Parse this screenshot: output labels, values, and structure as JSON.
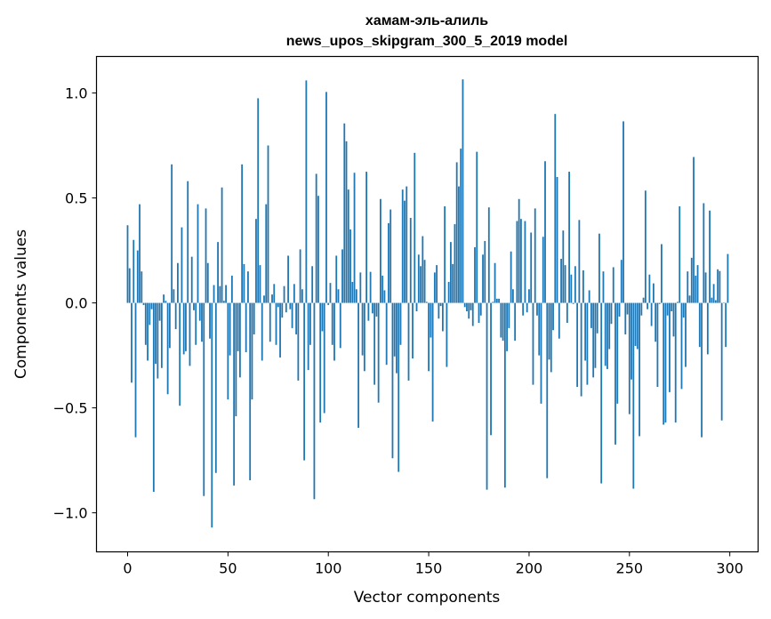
{
  "chart_data": {
    "type": "bar",
    "title": "хамам-эль-алиль",
    "subtitle": "news_upos_skipgram_300_5_2019 model",
    "xlabel": "Vector components",
    "ylabel": "Components values",
    "xlim": [
      -15.5,
      314.1
    ],
    "ylim": [
      -1.186,
      1.174
    ],
    "xticks": [
      0,
      50,
      100,
      150,
      200,
      250,
      300
    ],
    "xtick_labels": [
      "0",
      "50",
      "100",
      "150",
      "200",
      "250",
      "300"
    ],
    "yticks": [
      -1.0,
      -0.5,
      0.0,
      0.5,
      1.0
    ],
    "ytick_labels": [
      "−1.0",
      "−0.5",
      "0.0",
      "0.5",
      "1.0"
    ],
    "grid": false,
    "bar_color": "#1f77b4",
    "values": [
      0.37,
      0.165,
      -0.38,
      0.3,
      -0.64,
      0.25,
      0.47,
      0.15,
      -0.01,
      -0.2,
      -0.275,
      -0.105,
      -0.03,
      -0.9,
      -0.29,
      -0.36,
      -0.085,
      -0.31,
      0.04,
      0.01,
      -0.435,
      -0.215,
      0.66,
      0.065,
      -0.125,
      0.19,
      -0.49,
      0.36,
      -0.245,
      -0.23,
      0.58,
      -0.3,
      0.22,
      -0.035,
      -0.2,
      0.47,
      -0.085,
      -0.185,
      -0.92,
      0.45,
      0.19,
      -0.17,
      -1.07,
      0.085,
      -0.81,
      0.29,
      0.08,
      0.55,
      0.01,
      0.085,
      -0.46,
      -0.25,
      0.13,
      -0.87,
      -0.54,
      -0.23,
      -0.355,
      0.66,
      0.185,
      -0.235,
      0.15,
      -0.845,
      -0.46,
      -0.15,
      0.4,
      0.975,
      0.18,
      -0.275,
      0.035,
      0.47,
      0.75,
      -0.185,
      0.04,
      0.09,
      -0.2,
      -0.02,
      -0.26,
      -0.07,
      0.08,
      -0.045,
      0.225,
      -0.03,
      -0.12,
      0.09,
      -0.15,
      -0.37,
      0.255,
      0.065,
      -0.75,
      1.06,
      -0.32,
      -0.2,
      0.175,
      -0.935,
      0.615,
      0.51,
      -0.57,
      -0.135,
      -0.525,
      1.005,
      -0.01,
      0.095,
      -0.2,
      -0.275,
      0.225,
      0.065,
      -0.215,
      0.255,
      0.855,
      0.77,
      0.54,
      0.35,
      0.1,
      0.62,
      0.065,
      -0.595,
      0.145,
      -0.25,
      -0.325,
      0.625,
      -0.085,
      0.148,
      -0.05,
      -0.39,
      -0.065,
      -0.475,
      0.495,
      0.13,
      0.06,
      -0.295,
      0.38,
      0.445,
      -0.74,
      -0.255,
      -0.335,
      -0.805,
      -0.2,
      0.54,
      0.487,
      0.555,
      -0.37,
      0.405,
      -0.265,
      0.715,
      -0.04,
      0.23,
      0.175,
      0.318,
      0.205,
      0.005,
      -0.325,
      -0.165,
      -0.565,
      0.145,
      0.18,
      -0.075,
      -0.015,
      -0.135,
      0.46,
      -0.305,
      0.1,
      0.29,
      0.185,
      0.375,
      0.67,
      0.555,
      0.735,
      1.065,
      -0.02,
      -0.04,
      -0.075,
      -0.035,
      -0.11,
      0.265,
      0.72,
      -0.095,
      -0.06,
      0.23,
      0.295,
      -0.89,
      0.455,
      -0.63,
      0.005,
      0.19,
      0.02,
      0.02,
      -0.165,
      -0.18,
      -0.88,
      -0.23,
      -0.12,
      0.245,
      0.065,
      -0.18,
      0.39,
      0.495,
      0.4,
      -0.06,
      0.39,
      -0.045,
      0.065,
      0.335,
      -0.39,
      0.45,
      -0.06,
      -0.25,
      -0.48,
      0.315,
      0.675,
      -0.835,
      -0.27,
      -0.33,
      -0.13,
      0.9,
      0.6,
      -0.17,
      0.21,
      0.345,
      0.18,
      -0.095,
      0.625,
      0.135,
      -0.005,
      0.175,
      -0.4,
      0.395,
      -0.445,
      0.155,
      -0.275,
      -0.39,
      0.06,
      -0.12,
      -0.355,
      -0.31,
      -0.145,
      0.33,
      -0.86,
      0.15,
      -0.3,
      -0.315,
      -0.22,
      -0.1,
      0.17,
      -0.675,
      -0.48,
      -0.065,
      0.205,
      0.865,
      -0.15,
      -0.055,
      -0.53,
      -0.365,
      -0.885,
      -0.205,
      -0.22,
      -0.635,
      -0.06,
      0.025,
      0.535,
      -0.03,
      0.135,
      -0.11,
      0.093,
      -0.185,
      -0.4,
      -0.005,
      0.28,
      -0.58,
      -0.57,
      -0.06,
      -0.425,
      -0.04,
      -0.16,
      -0.57,
      0.005,
      0.46,
      -0.41,
      -0.07,
      -0.305,
      0.15,
      0.035,
      0.215,
      0.695,
      0.13,
      0.18,
      -0.21,
      -0.64,
      0.475,
      0.145,
      -0.245,
      0.44,
      0.025,
      0.09,
      0.013,
      0.16,
      0.152,
      -0.56,
      0.002,
      -0.21,
      0.233
    ]
  }
}
